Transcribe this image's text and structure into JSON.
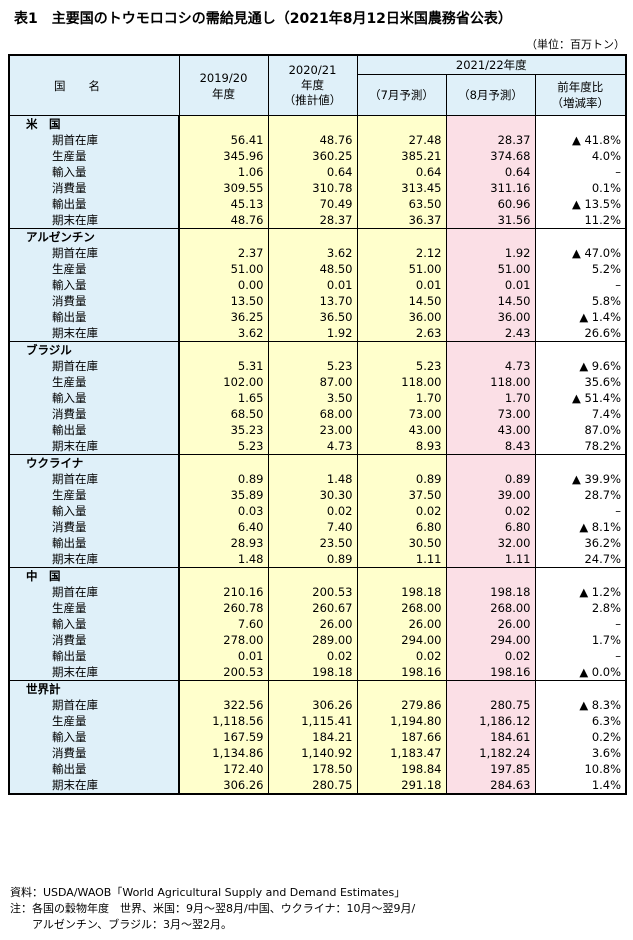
{
  "title": "表1　主要国のトウモロコシの需給見通し（2021年8月12日米国農務省公表）",
  "unit": "（単位：百万トン）",
  "header": {
    "country_col": "国　　名",
    "col1": "2019/20\n年度",
    "col2": "2020/21\n年度\n（推計値）",
    "group": "2021/22年度",
    "col3": "（7月予測）",
    "col4": "（8月予測）",
    "col5": "前年度比\n（増減率）"
  },
  "countries": [
    {
      "name": "米　国",
      "rows": [
        {
          "label": "期首在庫",
          "v": [
            "56.41",
            "48.76",
            "27.48",
            "28.37",
            "▲ 41.8%"
          ]
        },
        {
          "label": "生産量",
          "v": [
            "345.96",
            "360.25",
            "385.21",
            "374.68",
            "4.0%"
          ]
        },
        {
          "label": "輸入量",
          "v": [
            "1.06",
            "0.64",
            "0.64",
            "0.64",
            "–"
          ]
        },
        {
          "label": "消費量",
          "v": [
            "309.55",
            "310.78",
            "313.45",
            "311.16",
            "0.1%"
          ]
        },
        {
          "label": "輸出量",
          "v": [
            "45.13",
            "70.49",
            "63.50",
            "60.96",
            "▲ 13.5%"
          ]
        },
        {
          "label": "期末在庫",
          "v": [
            "48.76",
            "28.37",
            "36.37",
            "31.56",
            "11.2%"
          ]
        }
      ]
    },
    {
      "name": "アルゼンチン",
      "rows": [
        {
          "label": "期首在庫",
          "v": [
            "2.37",
            "3.62",
            "2.12",
            "1.92",
            "▲ 47.0%"
          ]
        },
        {
          "label": "生産量",
          "v": [
            "51.00",
            "48.50",
            "51.00",
            "51.00",
            "5.2%"
          ]
        },
        {
          "label": "輸入量",
          "v": [
            "0.00",
            "0.01",
            "0.01",
            "0.01",
            "–"
          ]
        },
        {
          "label": "消費量",
          "v": [
            "13.50",
            "13.70",
            "14.50",
            "14.50",
            "5.8%"
          ]
        },
        {
          "label": "輸出量",
          "v": [
            "36.25",
            "36.50",
            "36.00",
            "36.00",
            "▲ 1.4%"
          ]
        },
        {
          "label": "期末在庫",
          "v": [
            "3.62",
            "1.92",
            "2.63",
            "2.43",
            "26.6%"
          ]
        }
      ]
    },
    {
      "name": "ブラジル",
      "rows": [
        {
          "label": "期首在庫",
          "v": [
            "5.31",
            "5.23",
            "5.23",
            "4.73",
            "▲ 9.6%"
          ]
        },
        {
          "label": "生産量",
          "v": [
            "102.00",
            "87.00",
            "118.00",
            "118.00",
            "35.6%"
          ]
        },
        {
          "label": "輸入量",
          "v": [
            "1.65",
            "3.50",
            "1.70",
            "1.70",
            "▲ 51.4%"
          ]
        },
        {
          "label": "消費量",
          "v": [
            "68.50",
            "68.00",
            "73.00",
            "73.00",
            "7.4%"
          ]
        },
        {
          "label": "輸出量",
          "v": [
            "35.23",
            "23.00",
            "43.00",
            "43.00",
            "87.0%"
          ]
        },
        {
          "label": "期末在庫",
          "v": [
            "5.23",
            "4.73",
            "8.93",
            "8.43",
            "78.2%"
          ]
        }
      ]
    },
    {
      "name": "ウクライナ",
      "rows": [
        {
          "label": "期首在庫",
          "v": [
            "0.89",
            "1.48",
            "0.89",
            "0.89",
            "▲ 39.9%"
          ]
        },
        {
          "label": "生産量",
          "v": [
            "35.89",
            "30.30",
            "37.50",
            "39.00",
            "28.7%"
          ]
        },
        {
          "label": "輸入量",
          "v": [
            "0.03",
            "0.02",
            "0.02",
            "0.02",
            "–"
          ]
        },
        {
          "label": "消費量",
          "v": [
            "6.40",
            "7.40",
            "6.80",
            "6.80",
            "▲ 8.1%"
          ]
        },
        {
          "label": "輸出量",
          "v": [
            "28.93",
            "23.50",
            "30.50",
            "32.00",
            "36.2%"
          ]
        },
        {
          "label": "期末在庫",
          "v": [
            "1.48",
            "0.89",
            "1.11",
            "1.11",
            "24.7%"
          ]
        }
      ]
    },
    {
      "name": "中　国",
      "rows": [
        {
          "label": "期首在庫",
          "v": [
            "210.16",
            "200.53",
            "198.18",
            "198.18",
            "▲ 1.2%"
          ]
        },
        {
          "label": "生産量",
          "v": [
            "260.78",
            "260.67",
            "268.00",
            "268.00",
            "2.8%"
          ]
        },
        {
          "label": "輸入量",
          "v": [
            "7.60",
            "26.00",
            "26.00",
            "26.00",
            "–"
          ]
        },
        {
          "label": "消費量",
          "v": [
            "278.00",
            "289.00",
            "294.00",
            "294.00",
            "1.7%"
          ]
        },
        {
          "label": "輸出量",
          "v": [
            "0.01",
            "0.02",
            "0.02",
            "0.02",
            "–"
          ]
        },
        {
          "label": "期末在庫",
          "v": [
            "200.53",
            "198.18",
            "198.16",
            "198.16",
            "▲ 0.0%"
          ]
        }
      ]
    },
    {
      "name": "世界計",
      "rows": [
        {
          "label": "期首在庫",
          "v": [
            "322.56",
            "306.26",
            "279.86",
            "280.75",
            "▲ 8.3%"
          ]
        },
        {
          "label": "生産量",
          "v": [
            "1,118.56",
            "1,115.41",
            "1,194.80",
            "1,186.12",
            "6.3%"
          ]
        },
        {
          "label": "輸入量",
          "v": [
            "167.59",
            "184.21",
            "187.66",
            "184.61",
            "0.2%"
          ]
        },
        {
          "label": "消費量",
          "v": [
            "1,134.86",
            "1,140.92",
            "1,183.47",
            "1,182.24",
            "3.6%"
          ]
        },
        {
          "label": "輸出量",
          "v": [
            "172.40",
            "178.50",
            "198.84",
            "197.85",
            "10.8%"
          ]
        },
        {
          "label": "期末在庫",
          "v": [
            "306.26",
            "280.75",
            "291.18",
            "284.63",
            "1.4%"
          ]
        }
      ]
    }
  ],
  "notes": [
    "資料：USDA/WAOB「World Agricultural Supply and Demand Estimates」",
    "注：各国の穀物年度　世界、米国：9月～翌8月/中国、ウクライナ：10月～翌9月/",
    "　　アルゼンチン、ブラジル：3月～翌2月。"
  ]
}
